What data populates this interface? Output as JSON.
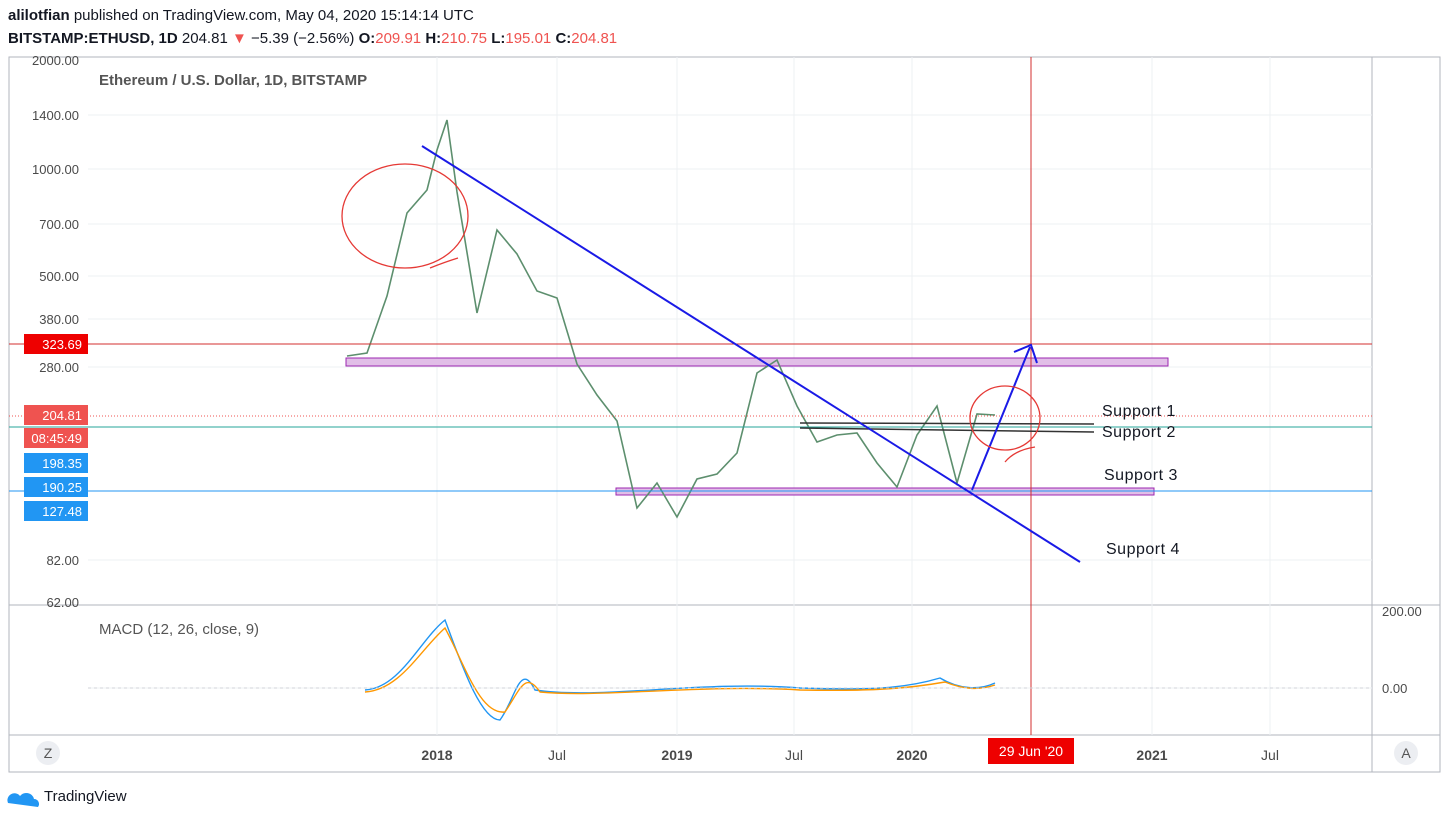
{
  "header": {
    "author": "alilotfian",
    "published": "published on TradingView.com, May 04, 2020 15:14:14 UTC",
    "symbol": "BITSTAMP:ETHUSD, 1D",
    "last": "204.81",
    "arrow": "▼",
    "change": "−5.39 (−2.56%)",
    "o_label": "O:",
    "open": "209.91",
    "h_label": "H:",
    "high": "210.75",
    "l_label": "L:",
    "low": "195.01",
    "c_label": "C:",
    "close": "204.81"
  },
  "pane": {
    "title": "Ethereum / U.S. Dollar, 1D, BITSTAMP",
    "price_ticks": [
      "2000.00",
      "1400.00",
      "1000.00",
      "700.00",
      "500.00",
      "380.00",
      "280.00",
      "82.00",
      "62.00"
    ],
    "price_tags": [
      "323.69",
      "204.81",
      "08:45:49",
      "198.35",
      "190.25",
      "127.48"
    ],
    "annotations": [
      "Support 1",
      "Support 2",
      "Support 3",
      "Support 4"
    ]
  },
  "macd": {
    "title": "MACD (12, 26, close, 9)",
    "ticks": [
      "200.00",
      "0.00"
    ]
  },
  "time_axis": {
    "labels": [
      "2018",
      "Jul",
      "2019",
      "Jul",
      "2020",
      "2021",
      "Jul"
    ],
    "cursor": "29 Jun '20"
  },
  "buttons": {
    "left": "Z",
    "right": "A"
  },
  "footer": {
    "brand": "TradingView"
  }
}
